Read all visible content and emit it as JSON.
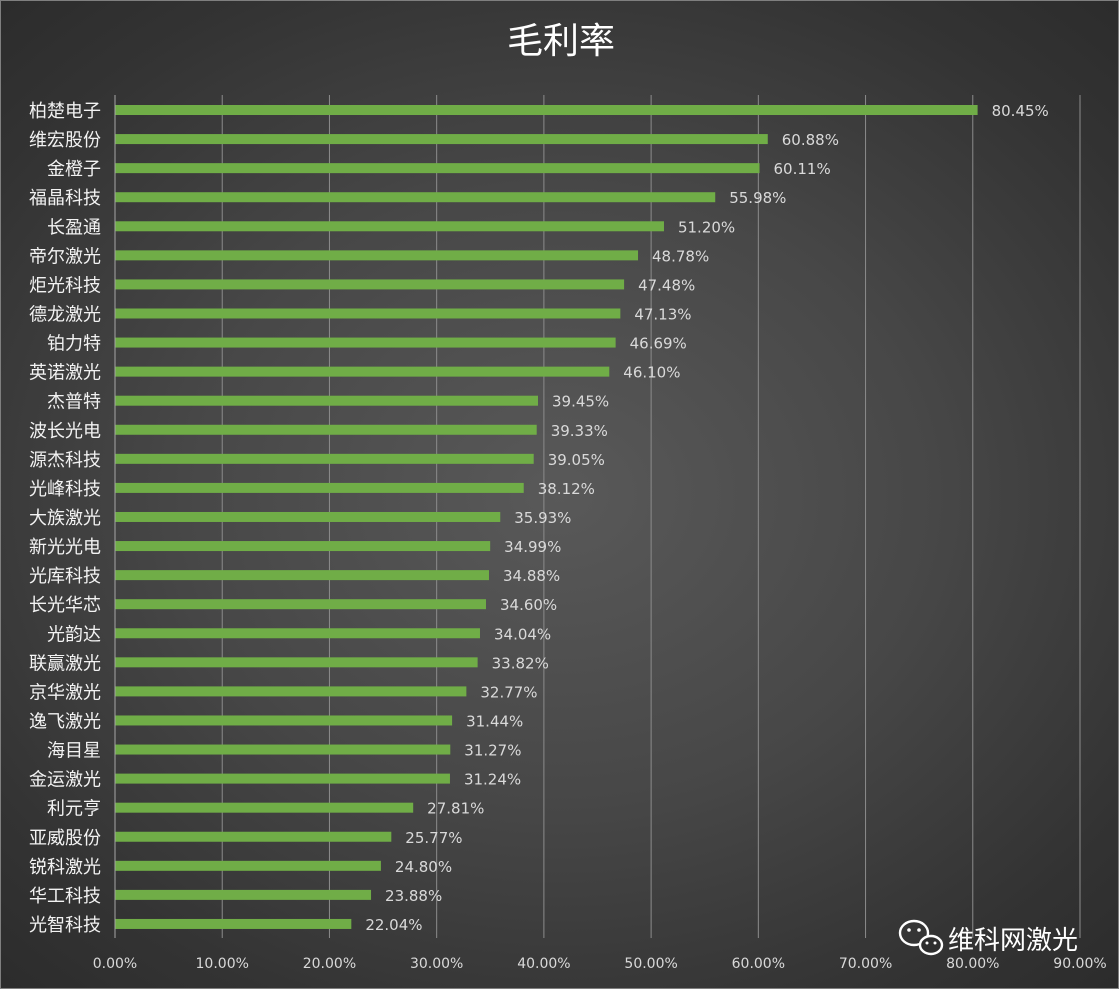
{
  "chart_data": {
    "type": "bar",
    "orientation": "horizontal",
    "title": "毛利率",
    "categories": [
      "柏楚电子",
      "维宏股份",
      "金橙子",
      "福晶科技",
      "长盈通",
      "帝尔激光",
      "炬光科技",
      "德龙激光",
      "铂力特",
      "英诺激光",
      "杰普特",
      "波长光电",
      "源杰科技",
      "光峰科技",
      "大族激光",
      "新光光电",
      "光库科技",
      "长光华芯",
      "光韵达",
      "联赢激光",
      "京华激光",
      "逸飞激光",
      "海目星",
      "金运激光",
      "利元亨",
      "亚威股份",
      "锐科激光",
      "华工科技",
      "光智科技"
    ],
    "values": [
      80.45,
      60.88,
      60.11,
      55.98,
      51.2,
      48.78,
      47.48,
      47.13,
      46.69,
      46.1,
      39.45,
      39.33,
      39.05,
      38.12,
      35.93,
      34.99,
      34.88,
      34.6,
      34.04,
      33.82,
      32.77,
      31.44,
      31.27,
      31.24,
      27.81,
      25.77,
      24.8,
      23.88,
      22.04
    ],
    "value_labels": [
      "80.45%",
      "60.88%",
      "60.11%",
      "55.98%",
      "51.20%",
      "48.78%",
      "47.48%",
      "47.13%",
      "46.69%",
      "46.10%",
      "39.45%",
      "39.33%",
      "39.05%",
      "38.12%",
      "35.93%",
      "34.99%",
      "34.88%",
      "34.60%",
      "34.04%",
      "33.82%",
      "32.77%",
      "31.44%",
      "31.27%",
      "31.24%",
      "27.81%",
      "25.77%",
      "24.80%",
      "23.88%",
      "22.04%"
    ],
    "xlim": [
      0,
      90
    ],
    "x_ticks": [
      0,
      10,
      20,
      30,
      40,
      50,
      60,
      70,
      80,
      90
    ],
    "x_tick_labels": [
      "0.00%",
      "10.00%",
      "20.00%",
      "30.00%",
      "40.00%",
      "50.00%",
      "60.00%",
      "70.00%",
      "80.00%",
      "90.00%"
    ],
    "grid": true,
    "legend": "none",
    "bar_color": "#70ad47"
  },
  "watermark": {
    "text": "维科网激光",
    "icon": "wechat-icon"
  }
}
